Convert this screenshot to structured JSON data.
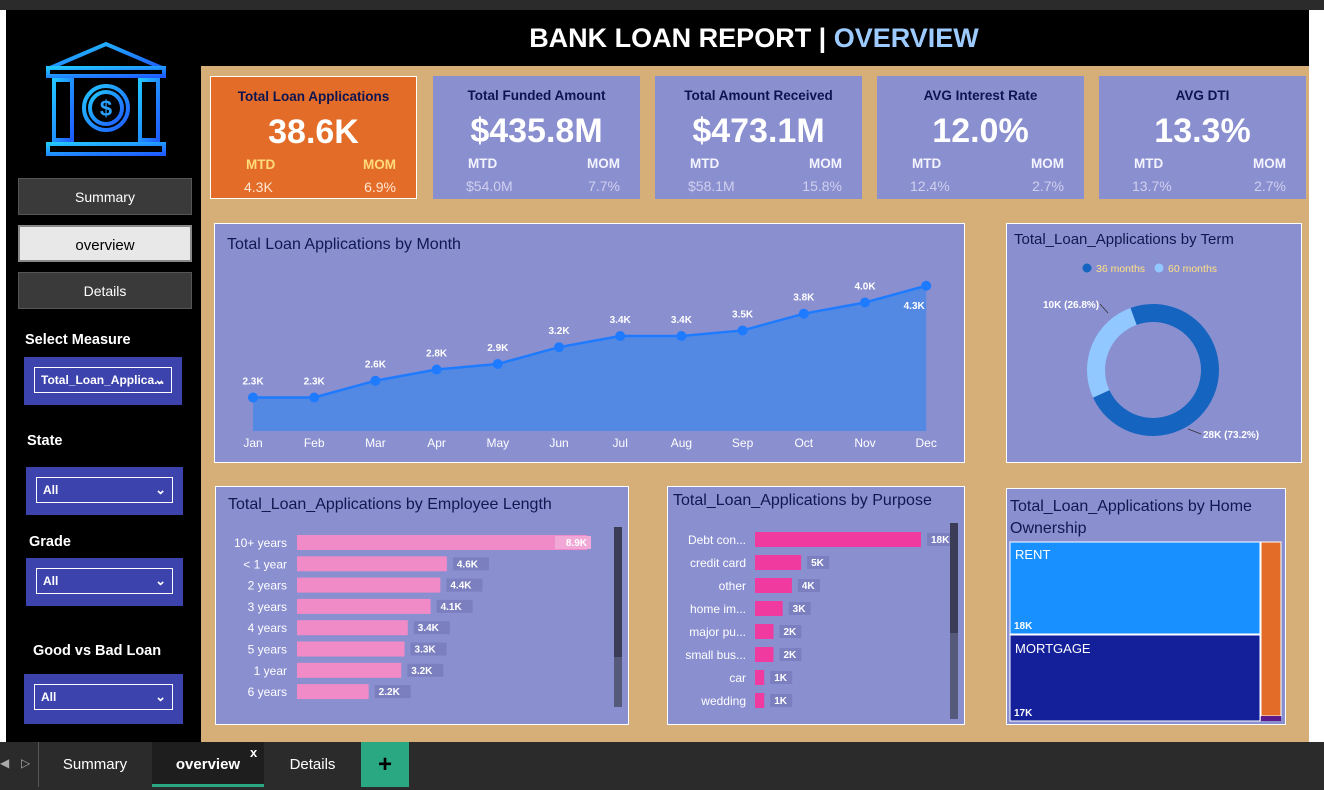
{
  "header": {
    "title_main": "BANK LOAN REPORT | ",
    "title_accent": "OVERVIEW"
  },
  "nav": {
    "summary": "Summary",
    "overview": "overview",
    "details": "Details"
  },
  "slicers": {
    "measure_label": "Select Measure",
    "measure_value": "Total_Loan_Applica...",
    "state_label": "State",
    "state_value": "All",
    "grade_label": "Grade",
    "grade_value": "All",
    "loan_label": "Good vs Bad Loan",
    "loan_value": "All"
  },
  "kpis": [
    {
      "title": "Total Loan Applications",
      "value": "38.6K",
      "mtd_label": "MTD",
      "mom_label": "MOM",
      "mtd": "4.3K",
      "mom": "6.9%"
    },
    {
      "title": "Total Funded Amount",
      "value": "$435.8M",
      "mtd_label": "MTD",
      "mom_label": "MOM",
      "mtd": "$54.0M",
      "mom": "7.7%"
    },
    {
      "title": "Total  Amount Received",
      "value": "$473.1M",
      "mtd_label": "MTD",
      "mom_label": "MOM",
      "mtd": "$58.1M",
      "mom": "15.8%"
    },
    {
      "title": "AVG Interest Rate",
      "value": "12.0%",
      "mtd_label": "MTD",
      "mom_label": "MOM",
      "mtd": "12.4%",
      "mom": "2.7%"
    },
    {
      "title": "AVG DTI",
      "value": "13.3%",
      "mtd_label": "MTD",
      "mom_label": "MOM",
      "mtd": "13.7%",
      "mom": "2.7%"
    }
  ],
  "panels": {
    "month": "Total Loan Applications by Month",
    "term": "Total_Loan_Applications by Term",
    "emp": "Total_Loan_Applications by Employee Length",
    "purpose": "Total_Loan_Applications by Purpose",
    "home_line1": "Total_Loan_Applications by Home",
    "home_line2": "Ownership"
  },
  "chart_data": [
    {
      "type": "area",
      "categories": [
        "Jan",
        "Feb",
        "Mar",
        "Apr",
        "May",
        "Jun",
        "Jul",
        "Aug",
        "Sep",
        "Oct",
        "Nov",
        "Dec"
      ],
      "values": [
        2.3,
        2.3,
        2.6,
        2.8,
        2.9,
        3.2,
        3.4,
        3.4,
        3.5,
        3.8,
        4.0,
        4.3
      ],
      "labels": [
        "2.3K",
        "2.3K",
        "2.6K",
        "2.8K",
        "2.9K",
        "3.2K",
        "3.4K",
        "3.4K",
        "3.5K",
        "3.8K",
        "4.0K",
        "4.3K"
      ]
    },
    {
      "type": "pie",
      "legend": [
        "36 months",
        "60 months"
      ],
      "values": [
        28,
        10
      ],
      "labels": [
        "28K (73.2%)",
        "10K (26.8%)"
      ],
      "colors": [
        "#1565c0",
        "#90c8ff"
      ]
    },
    {
      "type": "bar",
      "categories": [
        "10+ years",
        "< 1 year",
        "2 years",
        "3 years",
        "4 years",
        "5 years",
        "1 year",
        "6 years"
      ],
      "values": [
        8.9,
        4.6,
        4.4,
        4.1,
        3.4,
        3.3,
        3.2,
        2.2
      ],
      "labels": [
        "8.9K",
        "4.6K",
        "4.4K",
        "4.1K",
        "3.4K",
        "3.3K",
        "3.2K",
        "2.2K"
      ],
      "color": "#f08bc8"
    },
    {
      "type": "bar",
      "categories": [
        "Debt con...",
        "credit card",
        "other",
        "home im...",
        "major pu...",
        "small bus...",
        "car",
        "wedding"
      ],
      "values": [
        18,
        5,
        4,
        3,
        2,
        2,
        1,
        1
      ],
      "labels": [
        "18K",
        "5K",
        "4K",
        "3K",
        "2K",
        "2K",
        "1K",
        "1K"
      ],
      "color": "#f03aa0"
    },
    {
      "type": "heatmap",
      "categories": [
        "RENT",
        "MORTGAGE"
      ],
      "labels": [
        "18K",
        "17K"
      ],
      "colors": [
        "#1890ff",
        "#14209a"
      ]
    }
  ],
  "tabs": {
    "summary": "Summary",
    "overview": "overview",
    "details": "Details",
    "close": "x",
    "add": "+"
  }
}
